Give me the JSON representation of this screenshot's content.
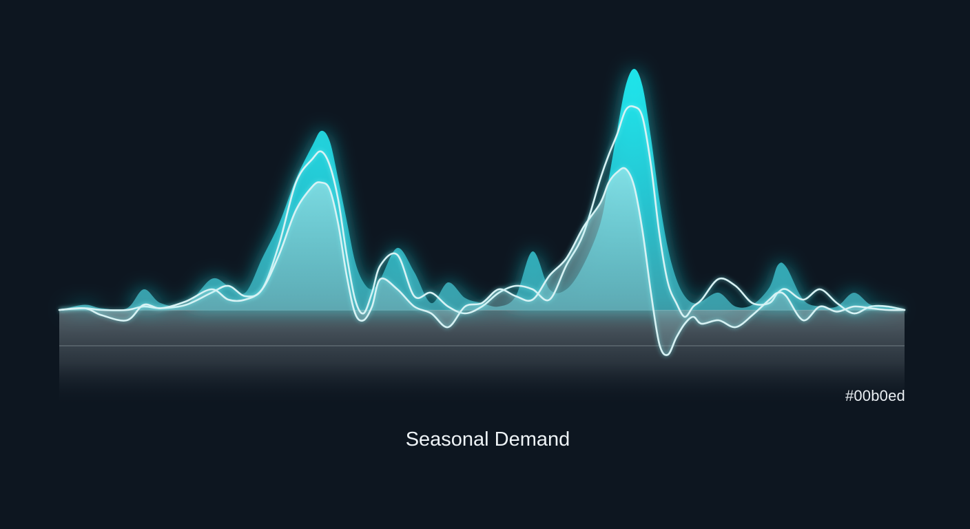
{
  "colors": {
    "background": "#0d1620",
    "accent": "#00b0ed",
    "glow": "#22eef5",
    "line": "#d8f2f4"
  },
  "color_label": "#00b0ed",
  "chart_data": {
    "type": "area",
    "title": "Seasonal Demand",
    "xlabel": "",
    "ylabel": "",
    "grid": false,
    "legend": "none",
    "xlim": [
      0,
      100
    ],
    "ylim": [
      -1.5,
      7.0
    ],
    "x": [
      0,
      3,
      5,
      8,
      10,
      12,
      15,
      18,
      20,
      22,
      24,
      26,
      28,
      30,
      31,
      32,
      33,
      34,
      35,
      36,
      37,
      38,
      40,
      42,
      44,
      46,
      48,
      50,
      52,
      54,
      56,
      58,
      60,
      62,
      64,
      65,
      66,
      67,
      68,
      69,
      70,
      71,
      72,
      73,
      74,
      75,
      76,
      78,
      80,
      82,
      84,
      85,
      86,
      88,
      90,
      92,
      94,
      96,
      98,
      100
    ],
    "series": [
      {
        "values": [
          0,
          0.15,
          0.05,
          0.05,
          0.6,
          0.2,
          0.15,
          0.9,
          0.7,
          0.5,
          1.5,
          2.5,
          3.8,
          4.8,
          5.2,
          4.9,
          3.8,
          2.6,
          1.4,
          0.8,
          0.6,
          0.9,
          1.8,
          1.1,
          0.2,
          0.8,
          0.35,
          0.2,
          0.1,
          0.4,
          1.7,
          0.6,
          0.6,
          1.3,
          2.5,
          3.8,
          5.2,
          6.5,
          7.0,
          6.5,
          5.0,
          3.2,
          1.8,
          0.9,
          0.4,
          0.2,
          0.25,
          0.5,
          0.1,
          0.15,
          0.65,
          1.3,
          1.25,
          0.3,
          0.1,
          0.1,
          0.5,
          0.15,
          0.1,
          0
        ]
      },
      {
        "values": [
          0,
          0.05,
          0,
          0,
          0.1,
          0.05,
          0.15,
          0.5,
          0.7,
          0.4,
          0.6,
          1.9,
          3.7,
          4.4,
          4.6,
          4.2,
          3.2,
          1.6,
          0.3,
          -0.1,
          0.5,
          1.3,
          1.6,
          0.4,
          0.5,
          0.1,
          -0.1,
          0.1,
          0.5,
          0.7,
          0.6,
          0.3,
          1.3,
          2.2,
          3.8,
          4.5,
          5.1,
          5.8,
          5.9,
          5.6,
          4.2,
          2.2,
          0.8,
          0.2,
          -0.2,
          0.1,
          0.3,
          0.9,
          0.7,
          0.2,
          0.2,
          0.5,
          0.6,
          0.3,
          0.6,
          0.2,
          -0.1,
          0.1,
          0.1,
          0
        ]
      },
      {
        "values": [
          0,
          0.05,
          -0.15,
          -0.3,
          0.15,
          0.05,
          0.25,
          0.6,
          0.3,
          0.3,
          0.6,
          1.6,
          2.9,
          3.6,
          3.7,
          3.5,
          2.5,
          1.0,
          -0.1,
          -0.3,
          0.1,
          0.9,
          0.6,
          0.1,
          -0.1,
          -0.5,
          0.1,
          0.2,
          0.6,
          0.4,
          0.3,
          1.0,
          1.5,
          2.4,
          3.1,
          3.7,
          4.0,
          4.1,
          3.6,
          2.3,
          0.5,
          -1.0,
          -1.3,
          -0.8,
          -0.4,
          -0.2,
          -0.4,
          -0.3,
          -0.5,
          -0.15,
          0.3,
          0.5,
          0.4,
          -0.3,
          0.1,
          -0.05,
          0.1,
          0.05,
          0,
          0
        ]
      }
    ]
  }
}
